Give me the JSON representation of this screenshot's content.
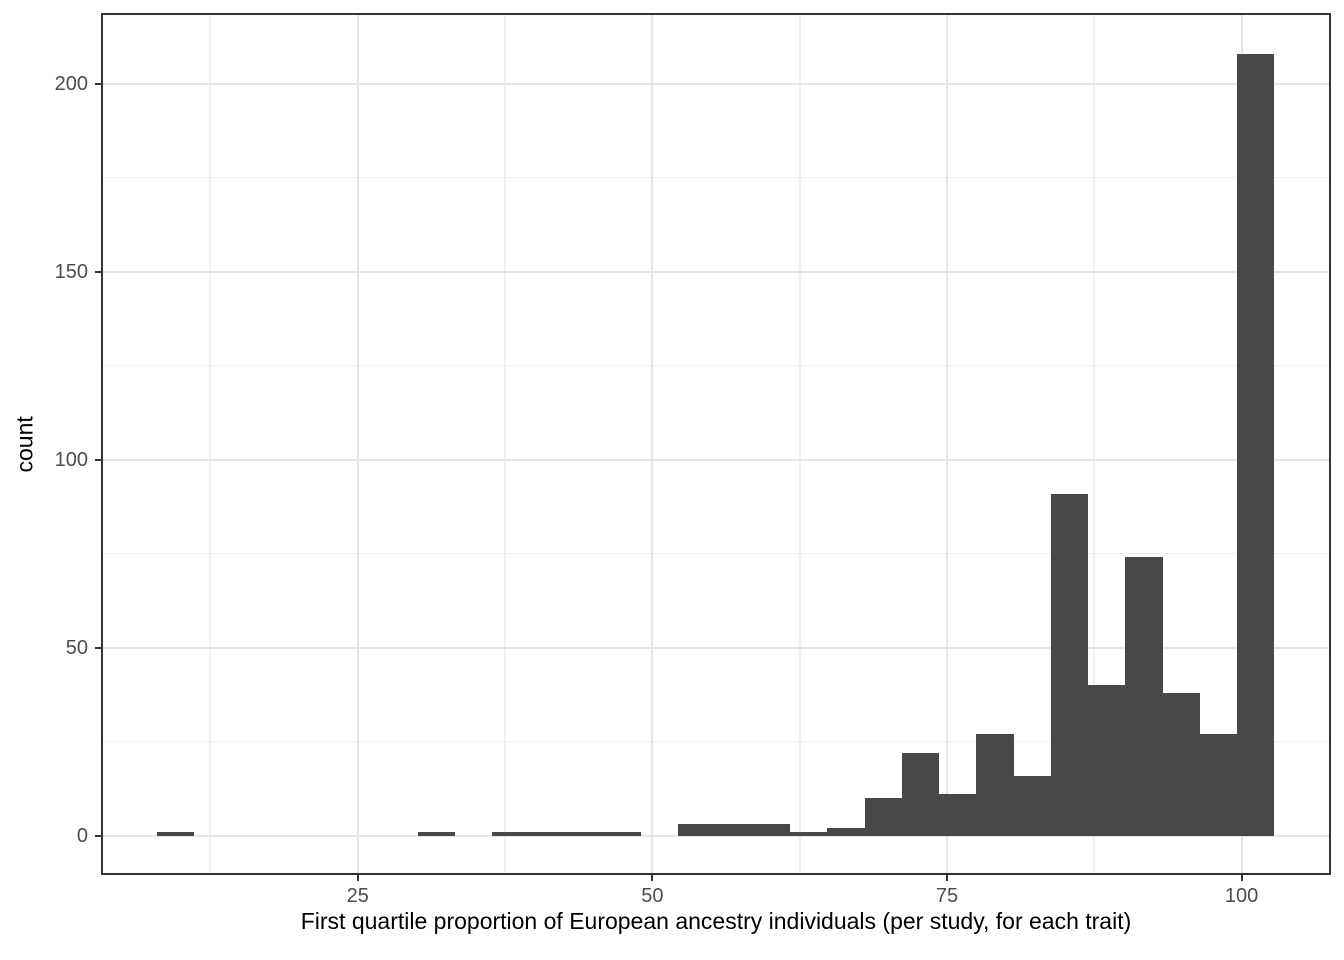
{
  "chart_data": {
    "type": "histogram",
    "title": "",
    "xlabel": "First quartile proportion of European ancestry individuals (per study, for each trait)",
    "ylabel": "count",
    "legend": "none",
    "grid": true,
    "bar_color": "#484848",
    "axis_text_color": "#4d4d4d",
    "axis_title_color": "#000000",
    "panel_border_color": "#333333",
    "grid_major_color": "#e5e5e5",
    "grid_minor_color": "#f0f0f0",
    "xlim": [
      3.38,
      107.42
    ],
    "ylim": [
      -9.93,
      218.26
    ],
    "x_ticks": [
      25,
      50,
      75,
      100
    ],
    "x_minor_ticks": [
      12.5,
      37.5,
      62.5,
      87.5
    ],
    "y_ticks": [
      0,
      50,
      100,
      150,
      200
    ],
    "y_minor_ticks": [
      25,
      75,
      125,
      175
    ],
    "bin_width": 3.16,
    "bins": [
      {
        "x0": 7.96,
        "x1": 11.12,
        "count": 1
      },
      {
        "x0": 11.12,
        "x1": 14.28,
        "count": 0
      },
      {
        "x0": 14.28,
        "x1": 17.44,
        "count": 0
      },
      {
        "x0": 17.44,
        "x1": 20.6,
        "count": 0
      },
      {
        "x0": 20.6,
        "x1": 23.76,
        "count": 0
      },
      {
        "x0": 23.76,
        "x1": 26.92,
        "count": 0
      },
      {
        "x0": 26.92,
        "x1": 30.08,
        "count": 0
      },
      {
        "x0": 30.08,
        "x1": 33.25,
        "count": 1
      },
      {
        "x0": 33.25,
        "x1": 36.41,
        "count": 0
      },
      {
        "x0": 36.41,
        "x1": 39.57,
        "count": 1
      },
      {
        "x0": 39.57,
        "x1": 42.73,
        "count": 1
      },
      {
        "x0": 42.73,
        "x1": 45.89,
        "count": 1
      },
      {
        "x0": 45.89,
        "x1": 49.05,
        "count": 1
      },
      {
        "x0": 49.05,
        "x1": 52.21,
        "count": 0
      },
      {
        "x0": 52.21,
        "x1": 55.37,
        "count": 3
      },
      {
        "x0": 55.37,
        "x1": 58.53,
        "count": 3
      },
      {
        "x0": 58.53,
        "x1": 61.7,
        "count": 3
      },
      {
        "x0": 61.7,
        "x1": 64.86,
        "count": 1
      },
      {
        "x0": 64.86,
        "x1": 68.02,
        "count": 2
      },
      {
        "x0": 68.02,
        "x1": 71.18,
        "count": 10
      },
      {
        "x0": 71.18,
        "x1": 74.34,
        "count": 22
      },
      {
        "x0": 74.34,
        "x1": 77.5,
        "count": 11
      },
      {
        "x0": 77.5,
        "x1": 80.66,
        "count": 27
      },
      {
        "x0": 80.66,
        "x1": 83.82,
        "count": 16
      },
      {
        "x0": 83.82,
        "x1": 86.99,
        "count": 91
      },
      {
        "x0": 86.99,
        "x1": 90.15,
        "count": 40
      },
      {
        "x0": 90.15,
        "x1": 93.31,
        "count": 74
      },
      {
        "x0": 93.31,
        "x1": 96.47,
        "count": 38
      },
      {
        "x0": 96.47,
        "x1": 99.63,
        "count": 27
      },
      {
        "x0": 99.63,
        "x1": 102.79,
        "count": 208
      }
    ]
  }
}
